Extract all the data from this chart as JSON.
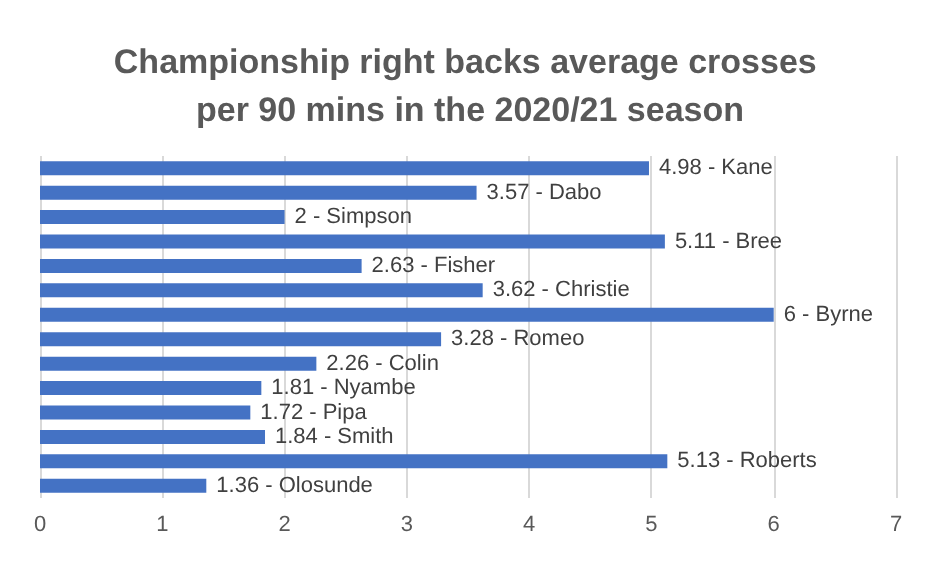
{
  "chart_data": {
    "type": "bar",
    "orientation": "horizontal",
    "title": "Championship right backs average crosses per 90 mins in the 2020/21 season",
    "categories": [
      null,
      null,
      null,
      null,
      null,
      null,
      null,
      null,
      null,
      null,
      null,
      null,
      null,
      null
    ],
    "values": [
      4.98,
      3.57,
      2,
      5.11,
      2.63,
      3.62,
      6,
      3.28,
      2.26,
      1.81,
      1.72,
      1.84,
      5.13,
      1.36
    ],
    "value_labels": [
      "4.98 - Kane",
      "3.57 - Dabo",
      "2 - Simpson",
      "5.11 - Bree",
      "2.63 - Fisher",
      "3.62 - Christie",
      "6 - Byrne",
      "3.28 - Romeo",
      "2.26 - Colin",
      "1.81 - Nyambe",
      "1.72 - Pipa",
      "1.84 - Smith",
      "5.13 - Roberts",
      "1.36 - Olosunde"
    ],
    "color": "#4472c4",
    "xlim": [
      0,
      7
    ],
    "xticks": [
      0,
      1,
      2,
      3,
      4,
      5,
      6,
      7
    ],
    "grid": "x",
    "tick_labels": "x"
  }
}
